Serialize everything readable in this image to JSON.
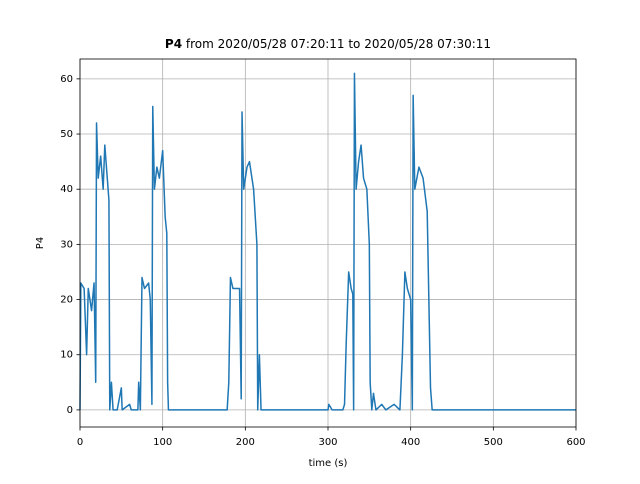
{
  "chart_data": {
    "type": "line",
    "title": {
      "name": "P4",
      "text": "from 2020/05/28 07:20:11 to 2020/05/28 07:30:11"
    },
    "xlabel": "time (s)",
    "ylabel": "P4",
    "x": [
      0,
      1,
      5,
      8,
      10,
      14,
      17,
      19,
      20,
      22,
      25,
      28,
      30,
      33,
      35,
      36,
      38,
      40,
      45,
      50,
      51,
      60,
      62,
      70,
      71,
      73,
      75,
      78,
      83,
      85,
      87,
      88,
      90,
      93,
      96,
      100,
      103,
      105,
      106,
      107,
      178,
      180,
      182,
      185,
      190,
      193,
      195,
      196,
      198,
      202,
      205,
      210,
      214,
      215,
      217,
      219,
      300,
      301,
      305,
      318,
      320,
      322,
      325,
      328,
      330,
      331,
      332,
      334,
      337,
      340,
      343,
      347,
      350,
      351,
      353,
      355,
      358,
      365,
      370,
      380,
      387,
      390,
      393,
      396,
      400,
      402,
      403,
      405,
      410,
      415,
      420,
      422,
      424,
      426,
      600
    ],
    "values": [
      0,
      23,
      22,
      10,
      22,
      18,
      23,
      5,
      52,
      42,
      46,
      40,
      48,
      42,
      38,
      0,
      5,
      0,
      0,
      4,
      0,
      1,
      0,
      0,
      5,
      0,
      24,
      22,
      23,
      20,
      1,
      55,
      40,
      44,
      42,
      47,
      35,
      32,
      5,
      0,
      0,
      5,
      24,
      22,
      22,
      22,
      2,
      54,
      40,
      44,
      45,
      40,
      30,
      0,
      10,
      0,
      0,
      1,
      0,
      0,
      1,
      12,
      25,
      22,
      21,
      0,
      61,
      40,
      45,
      48,
      42,
      40,
      30,
      5,
      0,
      3,
      0,
      1,
      0,
      1,
      0,
      10,
      25,
      22,
      20,
      0,
      57,
      40,
      44,
      42,
      36,
      20,
      4,
      0,
      0
    ],
    "color": "#1f77b4",
    "xlim": [
      0,
      600
    ],
    "ylim": [
      -3.1,
      63.6
    ],
    "xticks": [
      0,
      100,
      200,
      300,
      400,
      500,
      600
    ],
    "yticks": [
      0,
      10,
      20,
      30,
      40,
      50,
      60
    ],
    "grid": true
  }
}
